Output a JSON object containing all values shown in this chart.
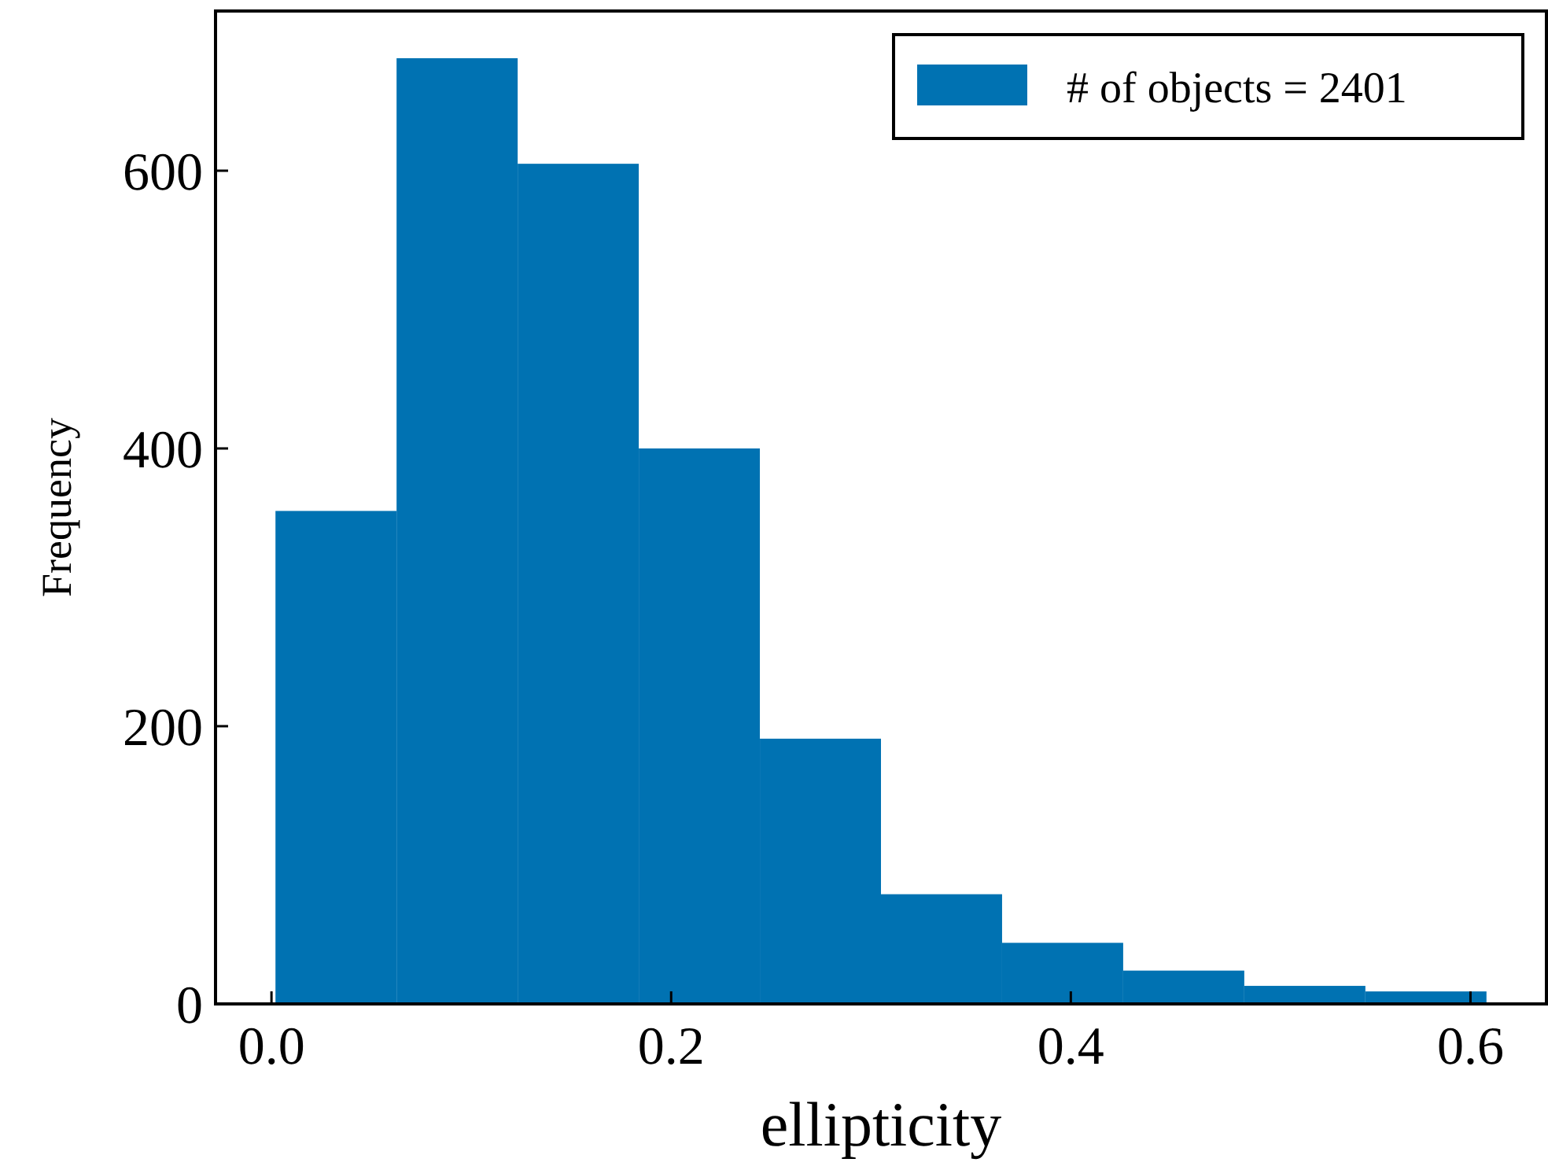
{
  "chart_data": {
    "type": "histogram",
    "xlabel": "ellipticity",
    "ylabel": "Frequency",
    "bins": [
      0.002,
      0.0626,
      0.1232,
      0.1838,
      0.2444,
      0.305,
      0.3656,
      0.4262,
      0.4868,
      0.5474,
      0.608
    ],
    "series": [
      {
        "name": "# of objects = 2401",
        "color": "#0072b2",
        "values": [
          355,
          681,
          605,
          400,
          191,
          79,
          44,
          24,
          13,
          9
        ]
      }
    ],
    "xlim": [
      -0.028,
      0.638
    ],
    "xticks": [
      {
        "value": 0,
        "label": "0.0"
      },
      {
        "value": 0.2,
        "label": "0.2"
      },
      {
        "value": 0.4,
        "label": "0.4"
      },
      {
        "value": 0.6,
        "label": "0.6"
      }
    ],
    "ylim": [
      0,
      715
    ],
    "yticks": [
      0,
      200,
      400,
      600
    ],
    "legend": "top right"
  }
}
